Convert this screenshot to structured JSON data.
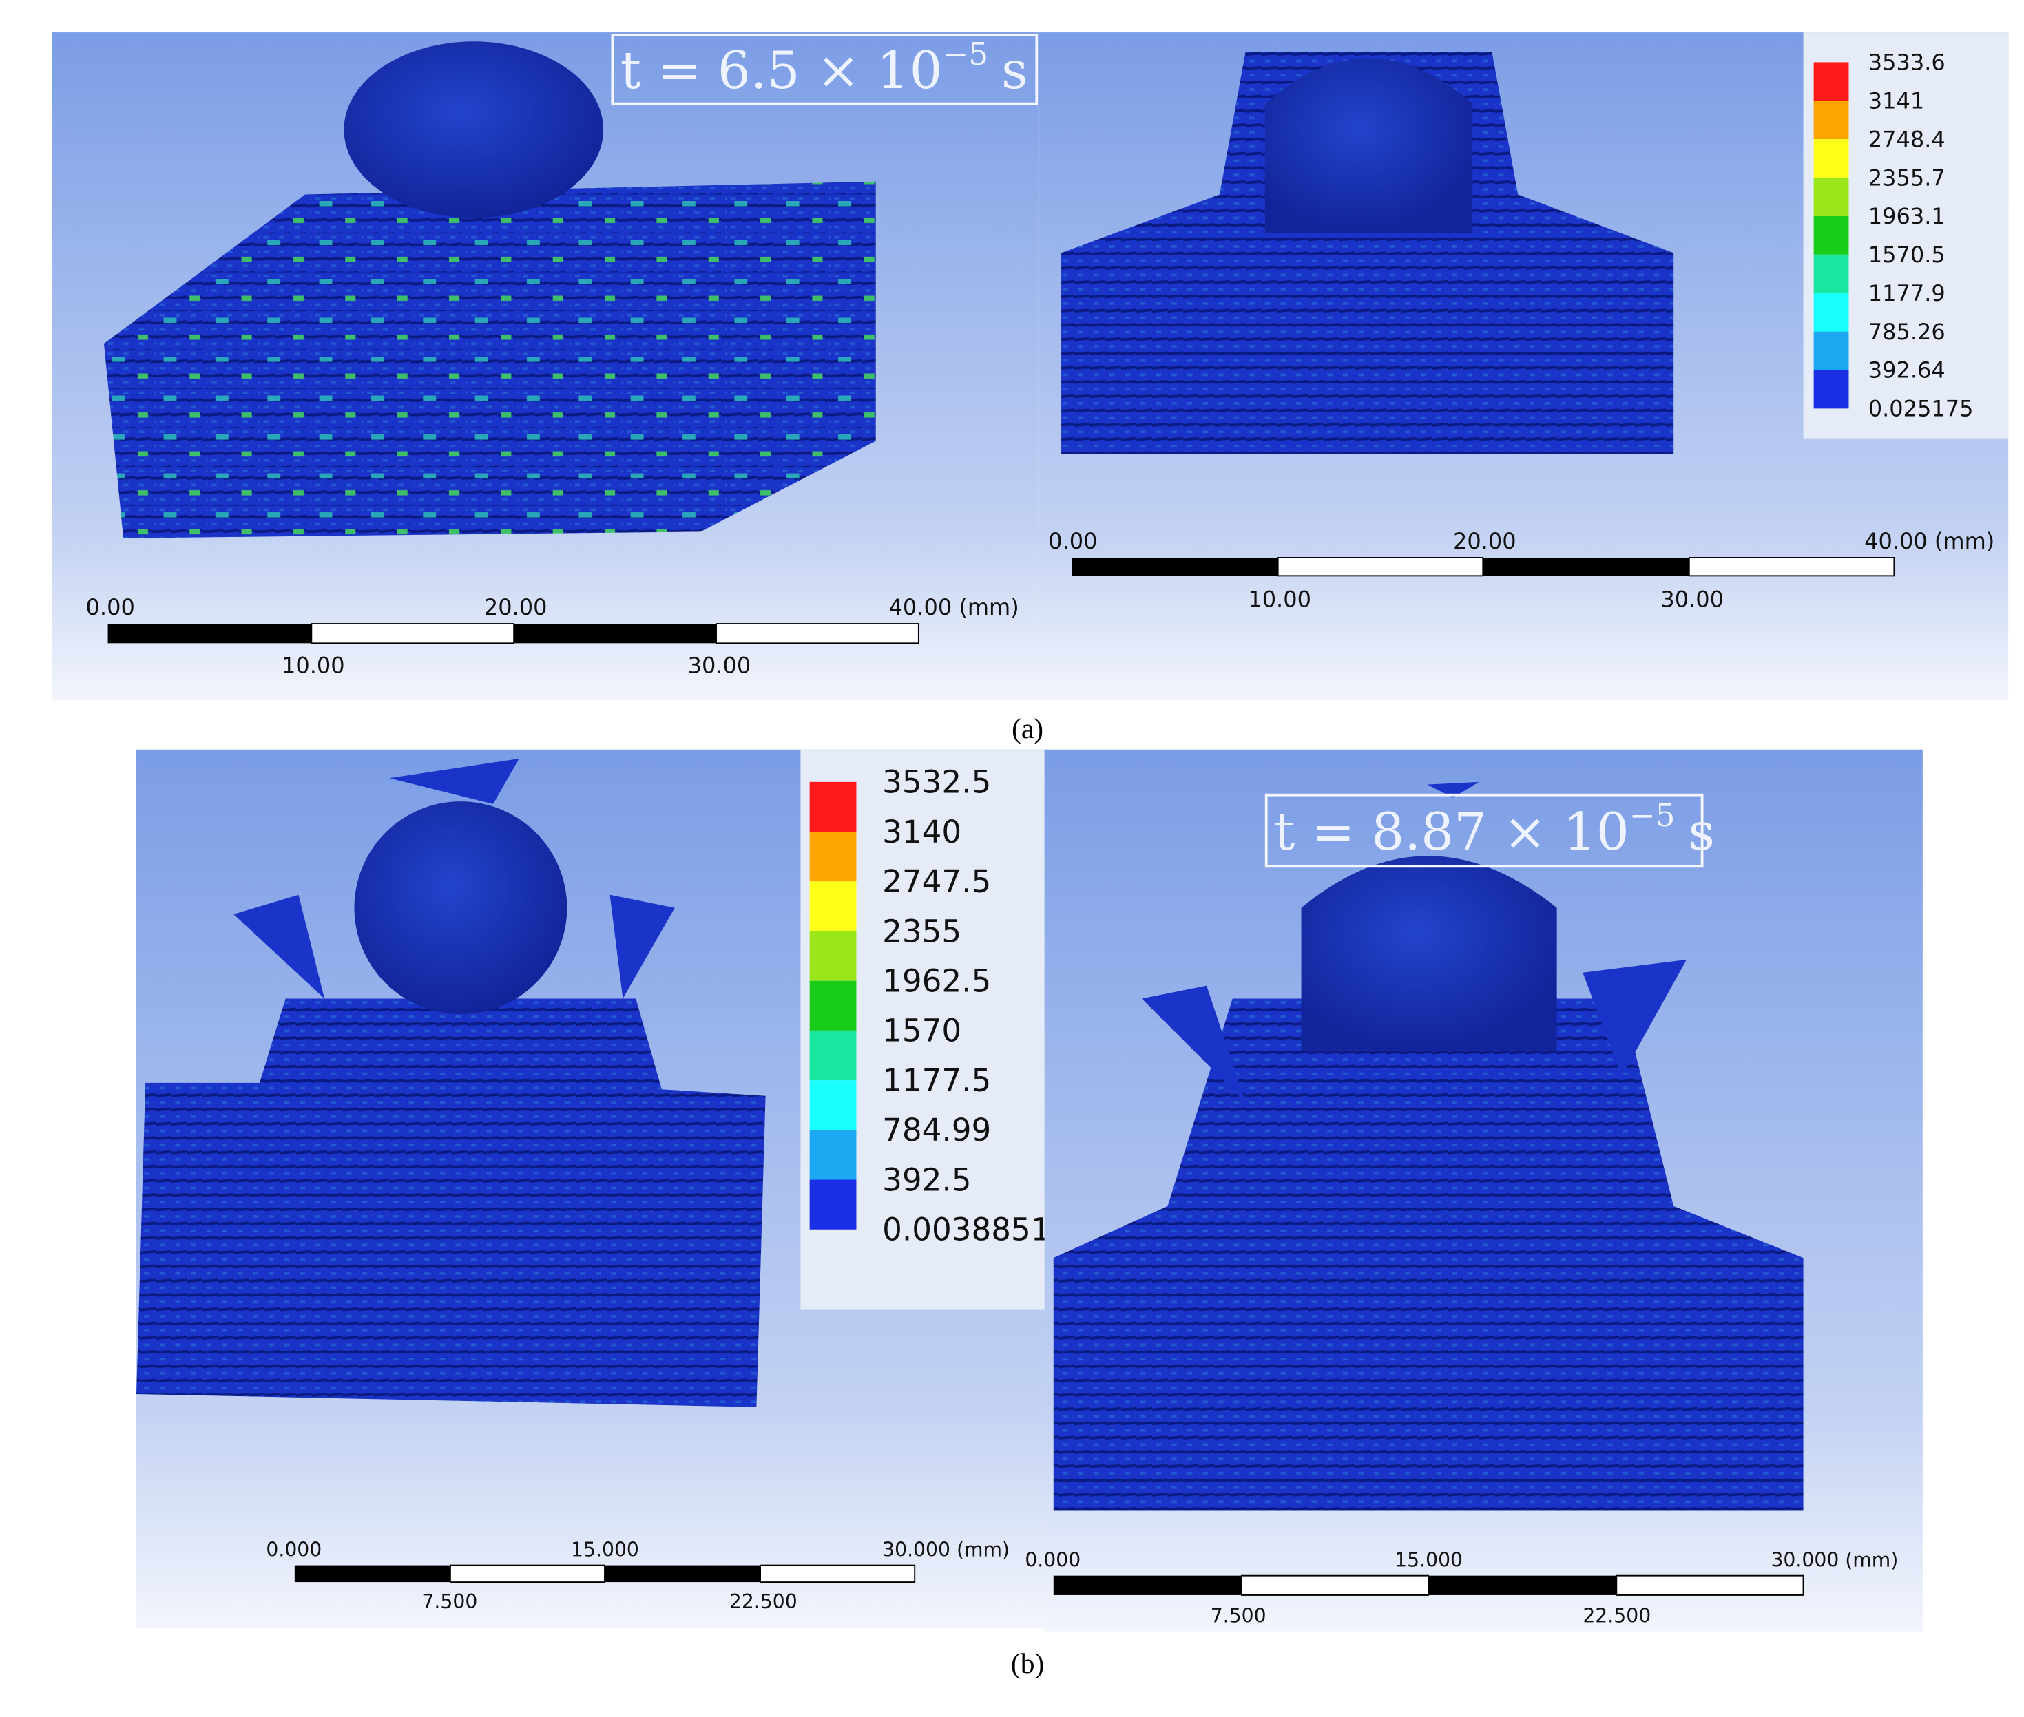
{
  "panels": [
    {
      "label": "(a)",
      "time": {
        "base": "t = 6.5 × 10",
        "exponent": "−5",
        "unit": "s"
      },
      "legend": [
        "3533.6",
        "3141",
        "2748.4",
        "2355.7",
        "1963.1",
        "1570.5",
        "1177.9",
        "785.26",
        "392.64",
        "0.025175"
      ],
      "scale_bars": [
        {
          "top": [
            "0.00",
            "20.00",
            "40.00 (mm)"
          ],
          "bottom": [
            "10.00",
            "30.00"
          ]
        },
        {
          "top": [
            "0.00",
            "20.00",
            "40.00 (mm)"
          ],
          "bottom": [
            "10.00",
            "30.00"
          ]
        }
      ]
    },
    {
      "label": "(b)",
      "time": {
        "base": "t = 8.87 × 10",
        "exponent": "−5",
        "unit": "s"
      },
      "legend": [
        "3532.5",
        "3140",
        "2747.5",
        "2355",
        "1962.5",
        "1570",
        "1177.5",
        "784.99",
        "392.5",
        "0.0038851"
      ],
      "scale_bars": [
        {
          "top": [
            "0.000",
            "15.000",
            "30.000 (mm)"
          ],
          "bottom": [
            "7.500",
            "22.500"
          ]
        },
        {
          "top": [
            "0.000",
            "15.000",
            "30.000 (mm)"
          ],
          "bottom": [
            "7.500",
            "22.500"
          ]
        }
      ]
    }
  ]
}
